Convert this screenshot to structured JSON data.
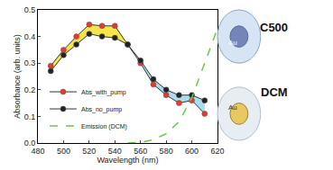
{
  "chart_data": {
    "type": "line",
    "x_title": "Wavelength (nm)",
    "y_title": "Absorbance (arb. units)",
    "xlim": [
      480,
      620
    ],
    "xticks": [
      480,
      500,
      520,
      540,
      560,
      580,
      600,
      620
    ],
    "ylim": [
      0,
      0.5
    ],
    "yticks": [
      {
        "value": 0,
        "label": "0.0"
      },
      0.1,
      0.2,
      0.3,
      0.4,
      0.5
    ],
    "grid": false,
    "legend": "lower left",
    "series": [
      {
        "name": "Abs_with_pump",
        "color": "#e8392f",
        "marker": "circle",
        "x": [
          490,
          500,
          510,
          520,
          530,
          540,
          550,
          560,
          570,
          580,
          590,
          600,
          610
        ],
        "values": [
          0.29,
          0.35,
          0.4,
          0.445,
          0.44,
          0.44,
          0.37,
          0.3,
          0.22,
          0.18,
          0.15,
          0.16,
          0.11
        ]
      },
      {
        "name": "Abs_no_pump",
        "color": "#222222",
        "marker": "circle",
        "x": [
          490,
          500,
          510,
          520,
          530,
          540,
          550,
          560,
          570,
          580,
          590,
          600,
          610
        ],
        "values": [
          0.27,
          0.33,
          0.37,
          0.41,
          0.4,
          0.395,
          0.37,
          0.31,
          0.24,
          0.2,
          0.18,
          0.18,
          0.16
        ]
      },
      {
        "name": "Emission (DCM)",
        "color": "#66cc44",
        "line_style": "dash",
        "x": [
          550,
          560,
          570,
          580,
          590,
          600,
          610,
          620
        ],
        "values": [
          0.0,
          0.003,
          0.012,
          0.035,
          0.08,
          0.17,
          0.3,
          0.43
        ]
      }
    ],
    "annotations": [
      {
        "text": "C500"
      },
      {
        "text": "Au"
      },
      {
        "text": "DCM"
      },
      {
        "text": "Au"
      }
    ]
  }
}
